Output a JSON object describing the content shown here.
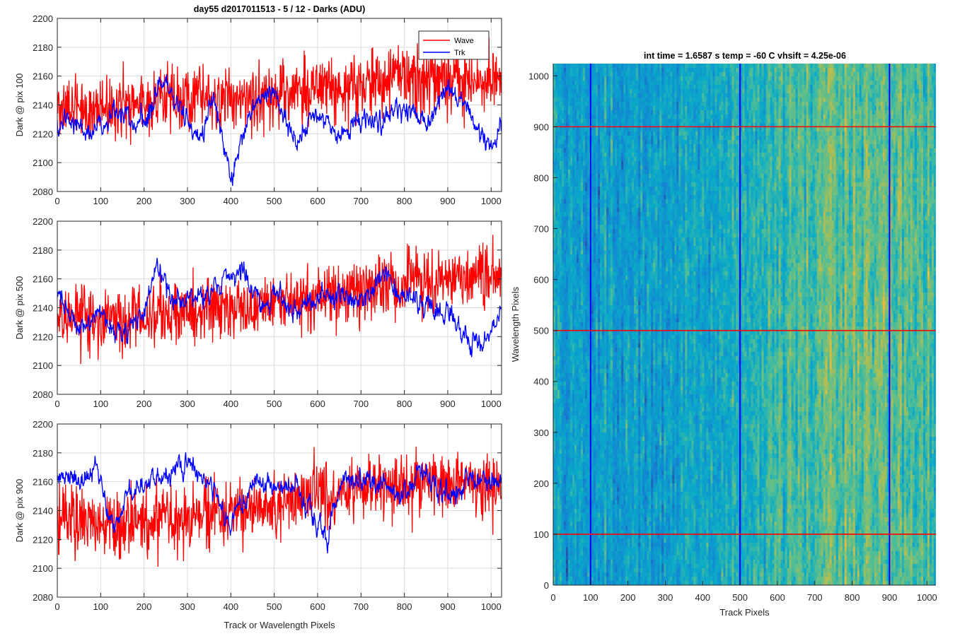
{
  "figure": {
    "suptitle": "day55 d2017011513 - 5 / 12 - Darks (ADU)",
    "legend": {
      "labels": [
        "Wave",
        "Trk"
      ],
      "colors": [
        "#ff0000",
        "#0000ff"
      ],
      "placement": "top-right"
    }
  },
  "chart_data": [
    {
      "type": "line",
      "name": "pix100",
      "xlabel": "",
      "ylabel": "Dark @ pix 100",
      "xlim": [
        0,
        1024
      ],
      "ylim": [
        2080,
        2200
      ],
      "xticks": [
        0,
        100,
        200,
        300,
        400,
        500,
        600,
        700,
        800,
        900,
        1000
      ],
      "yticks": [
        2080,
        2100,
        2120,
        2140,
        2160,
        2180,
        2200
      ],
      "grid": true,
      "series": [
        {
          "name": "Wave",
          "color": "#ff0000",
          "x": [
            0,
            64,
            128,
            192,
            256,
            320,
            384,
            448,
            512,
            576,
            640,
            704,
            768,
            832,
            896,
            960,
            1023
          ],
          "values": [
            2140,
            2138,
            2140,
            2141,
            2143,
            2142,
            2144,
            2146,
            2148,
            2150,
            2152,
            2155,
            2157,
            2158,
            2158,
            2157,
            2156
          ]
        },
        {
          "name": "Trk",
          "color": "#0000ff",
          "x": [
            0,
            50,
            100,
            150,
            200,
            250,
            290,
            330,
            360,
            400,
            450,
            500,
            550,
            600,
            650,
            700,
            750,
            800,
            850,
            900,
            950,
            1000,
            1023
          ],
          "values": [
            2128,
            2125,
            2124,
            2135,
            2128,
            2158,
            2132,
            2118,
            2145,
            2092,
            2138,
            2150,
            2115,
            2135,
            2118,
            2130,
            2128,
            2140,
            2128,
            2150,
            2135,
            2108,
            2130
          ]
        }
      ]
    },
    {
      "type": "line",
      "name": "pix500",
      "xlabel": "",
      "ylabel": "Dark @ pix 500",
      "xlim": [
        0,
        1024
      ],
      "ylim": [
        2080,
        2200
      ],
      "xticks": [
        0,
        100,
        200,
        300,
        400,
        500,
        600,
        700,
        800,
        900,
        1000
      ],
      "yticks": [
        2080,
        2100,
        2120,
        2140,
        2160,
        2180,
        2200
      ],
      "grid": true,
      "series": [
        {
          "name": "Wave",
          "color": "#ff0000",
          "x": [
            0,
            64,
            128,
            192,
            256,
            320,
            384,
            448,
            512,
            576,
            640,
            704,
            768,
            832,
            896,
            960,
            1023
          ],
          "values": [
            2135,
            2133,
            2132,
            2135,
            2136,
            2138,
            2140,
            2143,
            2145,
            2148,
            2151,
            2153,
            2156,
            2158,
            2159,
            2160,
            2160
          ]
        },
        {
          "name": "Trk",
          "color": "#0000ff",
          "x": [
            0,
            50,
            100,
            150,
            200,
            230,
            260,
            300,
            350,
            400,
            430,
            470,
            500,
            550,
            600,
            650,
            700,
            750,
            800,
            850,
            900,
            950,
            1000,
            1023
          ],
          "values": [
            2152,
            2122,
            2135,
            2118,
            2140,
            2170,
            2148,
            2145,
            2150,
            2162,
            2168,
            2140,
            2150,
            2135,
            2150,
            2148,
            2142,
            2162,
            2148,
            2140,
            2140,
            2115,
            2120,
            2140
          ]
        }
      ]
    },
    {
      "type": "line",
      "name": "pix900",
      "xlabel": "Track or Wavelength Pixels",
      "ylabel": "Dark @ pix 900",
      "xlim": [
        0,
        1024
      ],
      "ylim": [
        2080,
        2200
      ],
      "xticks": [
        0,
        100,
        200,
        300,
        400,
        500,
        600,
        700,
        800,
        900,
        1000
      ],
      "yticks": [
        2080,
        2100,
        2120,
        2140,
        2160,
        2180,
        2200
      ],
      "grid": true,
      "series": [
        {
          "name": "Wave",
          "color": "#ff0000",
          "x": [
            0,
            64,
            128,
            192,
            256,
            320,
            384,
            448,
            512,
            576,
            640,
            704,
            768,
            832,
            896,
            960,
            1023
          ],
          "values": [
            2135,
            2132,
            2131,
            2133,
            2134,
            2136,
            2138,
            2141,
            2145,
            2149,
            2152,
            2155,
            2158,
            2159,
            2159,
            2158,
            2158
          ]
        },
        {
          "name": "Trk",
          "color": "#0000ff",
          "x": [
            0,
            50,
            90,
            130,
            160,
            200,
            240,
            300,
            350,
            400,
            450,
            500,
            550,
            600,
            620,
            650,
            700,
            750,
            800,
            850,
            900,
            950,
            1000,
            1023
          ],
          "values": [
            2165,
            2160,
            2170,
            2130,
            2150,
            2162,
            2160,
            2172,
            2158,
            2132,
            2160,
            2155,
            2158,
            2130,
            2118,
            2155,
            2162,
            2158,
            2152,
            2165,
            2150,
            2162,
            2160,
            2160
          ]
        }
      ]
    },
    {
      "type": "heatmap",
      "name": "dark-image",
      "title": "int time = 1.6587 s    temp = -60 C    vhsift = 4.25e-06",
      "xlabel": "Track Pixels",
      "ylabel": "Wavelength Pixels",
      "xlim": [
        0,
        1024
      ],
      "ylim": [
        0,
        1024
      ],
      "xticks": [
        0,
        100,
        200,
        300,
        400,
        500,
        600,
        700,
        800,
        900,
        1000
      ],
      "yticks": [
        0,
        100,
        200,
        300,
        400,
        500,
        600,
        700,
        800,
        900,
        1000
      ],
      "colormap": "parula",
      "column_trend": {
        "x": [
          0,
          100,
          300,
          500,
          650,
          800,
          1024
        ],
        "level": [
          0.42,
          0.36,
          0.4,
          0.48,
          0.56,
          0.62,
          0.6
        ]
      },
      "overlays": {
        "vertical_lines": {
          "x": [
            100,
            500,
            900
          ],
          "color": "#0000ff"
        },
        "horizontal_lines": {
          "y": [
            100,
            500,
            900
          ],
          "color": "#ff0000"
        }
      }
    }
  ]
}
